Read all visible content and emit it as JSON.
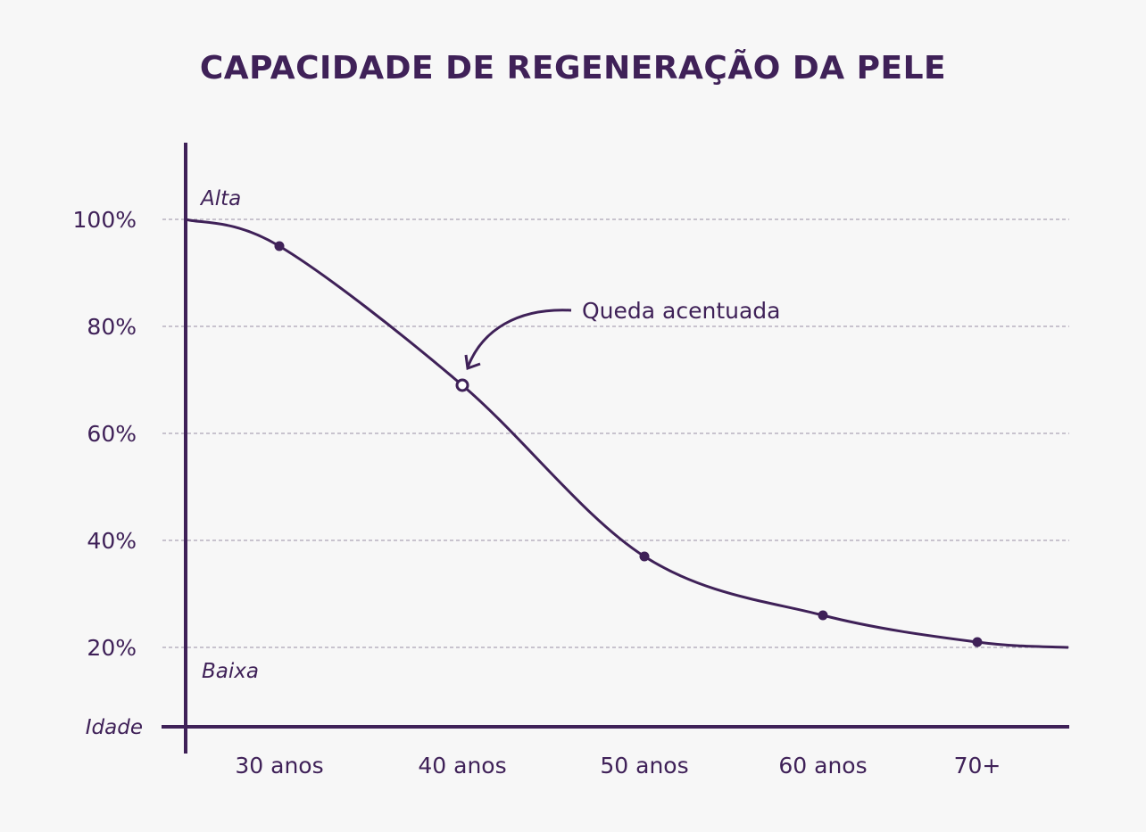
{
  "chart_data": {
    "type": "line",
    "title": "CAPACIDADE DE REGENERAÇÃO DA PELE",
    "categories": [
      "30 anos",
      "40 anos",
      "50 anos",
      "60 anos",
      "70+"
    ],
    "values": [
      95,
      69,
      37,
      26,
      21
    ],
    "curve_start_value": 100,
    "curve_end_value": 20,
    "highlighted_category": "40 anos",
    "ylim": [
      0,
      100
    ],
    "yticks": [
      20,
      40,
      60,
      80,
      100
    ],
    "ytick_labels": [
      "20%",
      "40%",
      "60%",
      "80%",
      "100%"
    ],
    "xlabel": "Idade",
    "y_high_label": "Alta",
    "y_low_label": "Baixa",
    "annotation": "Queda acentuada",
    "grid": "horizontal dashed",
    "colors": {
      "line": "#3f2158",
      "grid": "#9a8fa6",
      "background": "#f7f7f7"
    }
  }
}
